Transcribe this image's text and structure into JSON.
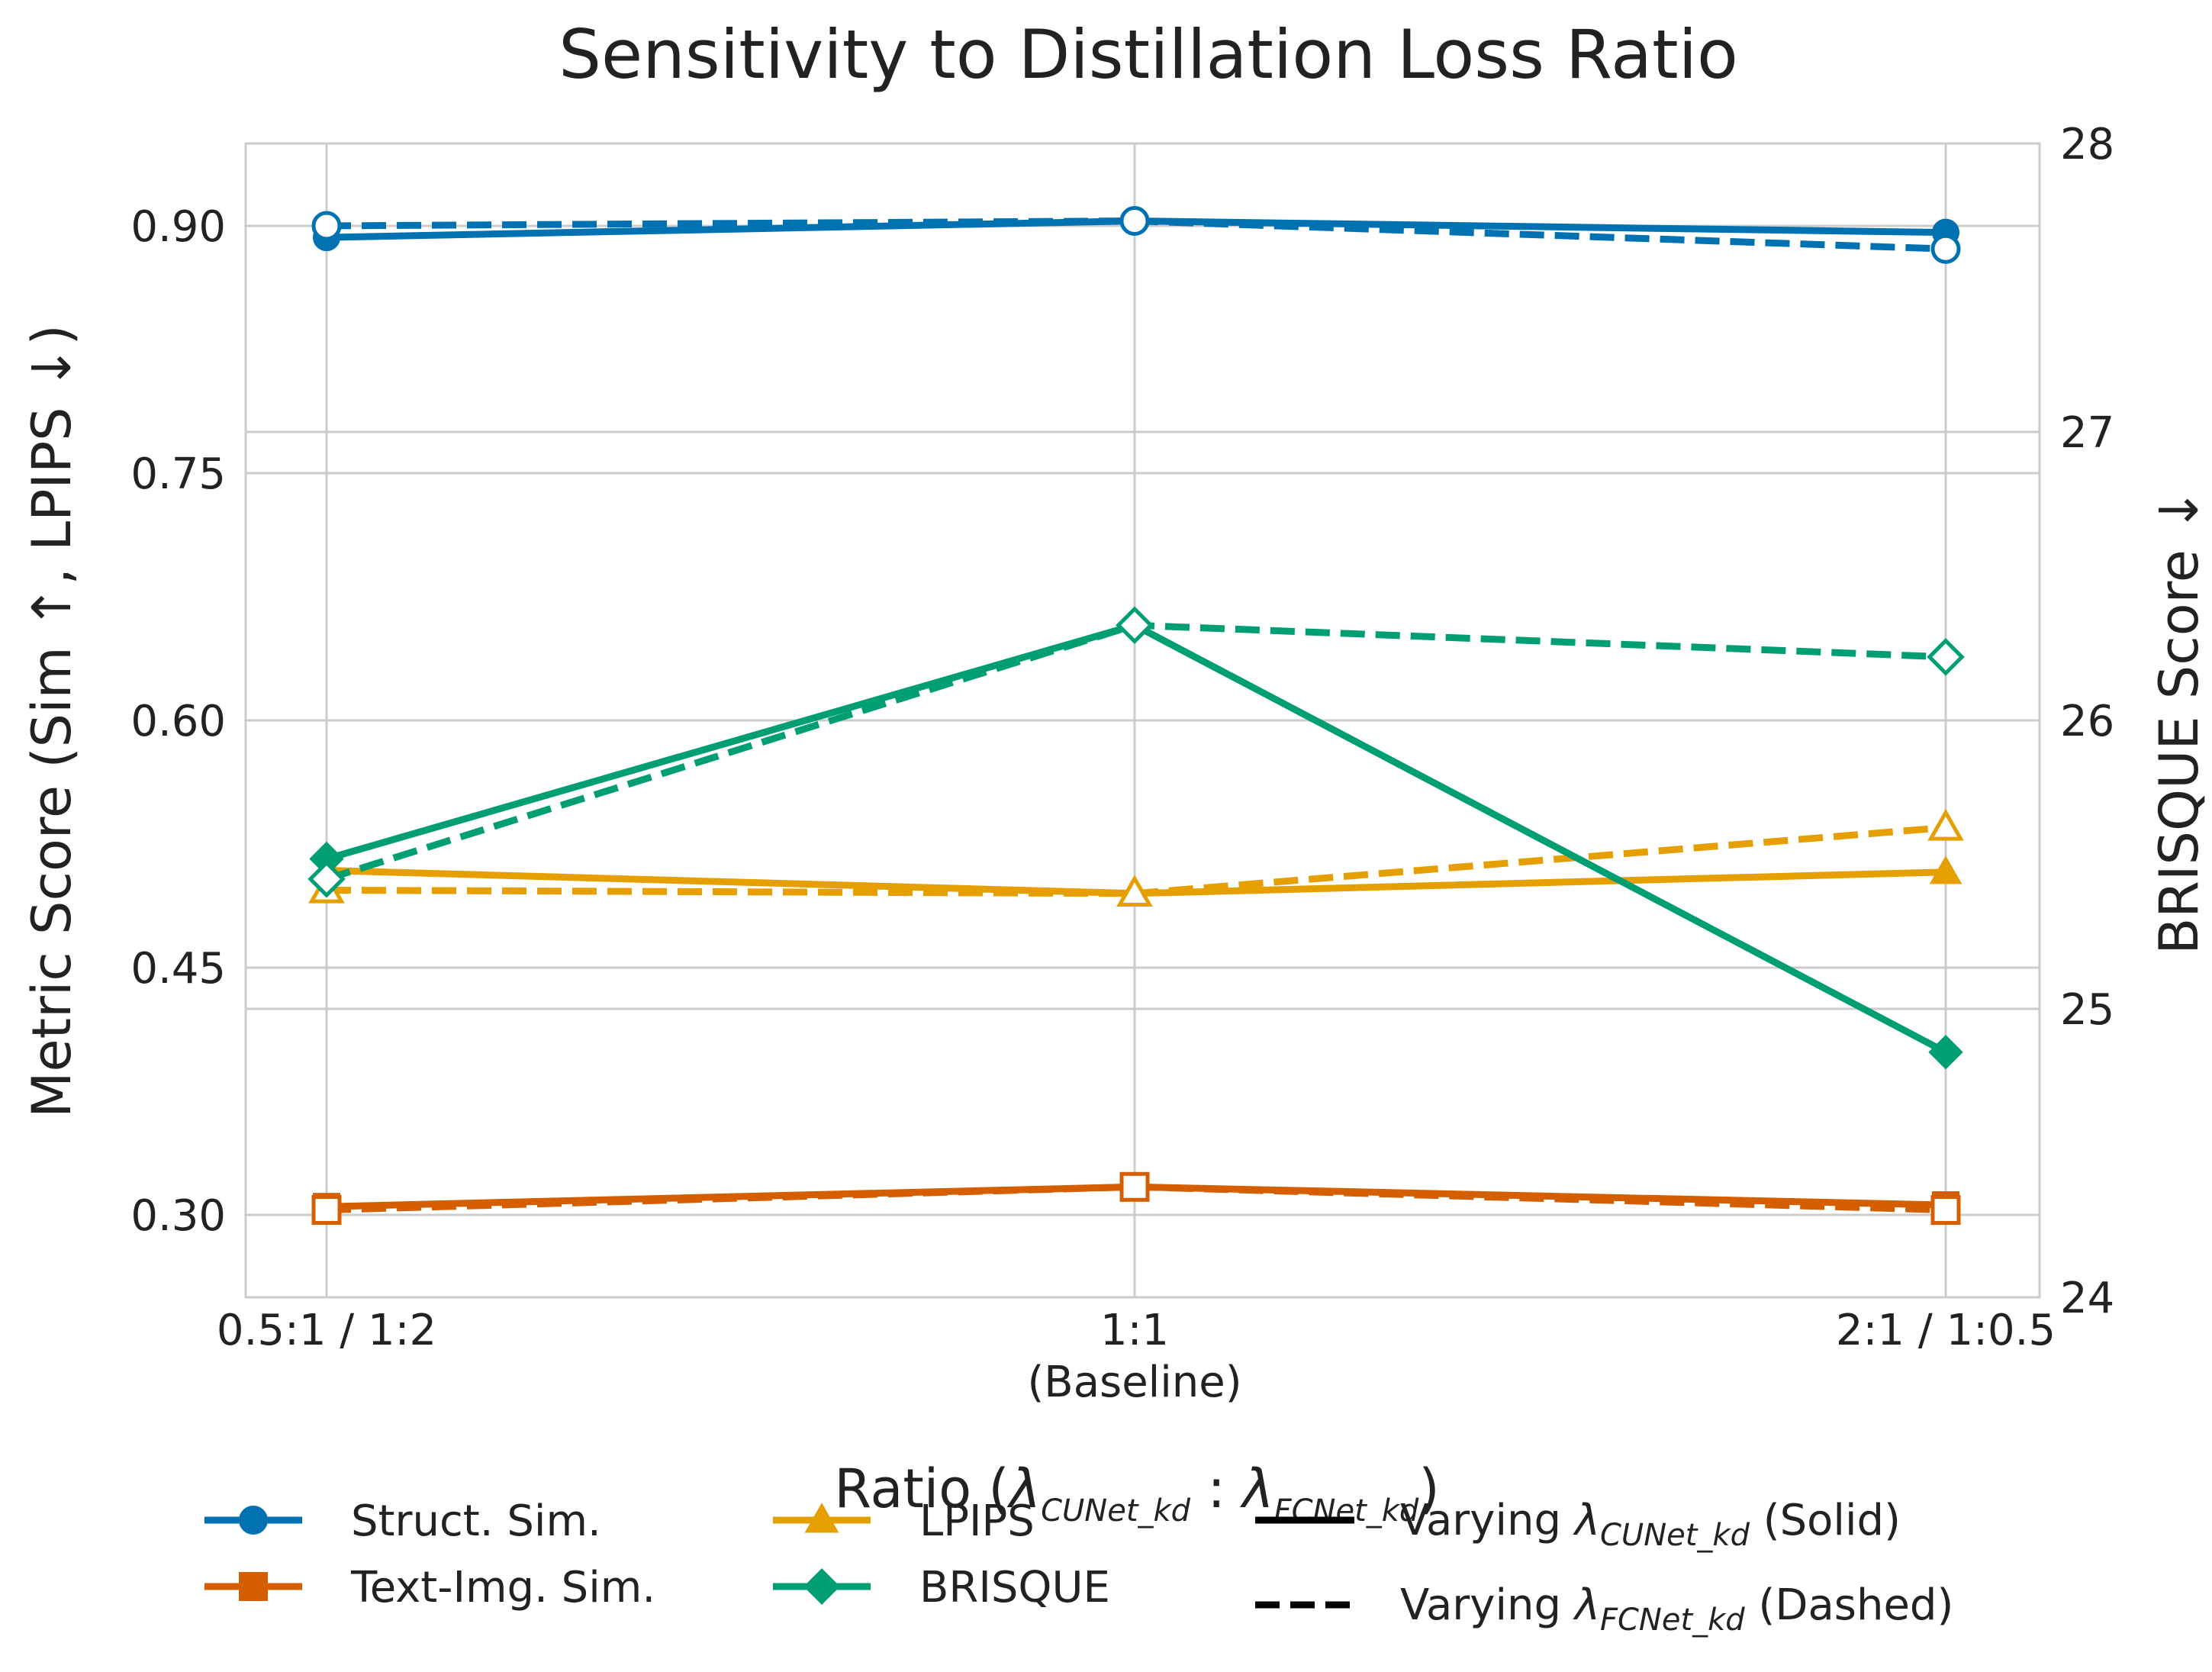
{
  "chart_data": {
    "type": "line",
    "title": "Sensitivity to Distillation Loss Ratio",
    "xlabel": "Ratio (λCUNet_kd : λFCNet_kd)",
    "xlabel_parts": {
      "prefix": "Ratio (",
      "lam1": "λ",
      "sub1": "CUNet_kd",
      "sep": " : ",
      "lam2": "λ",
      "sub2": "FCNet_kd",
      "suffix": ")"
    },
    "ylabel": "Metric Score (Sim ↑, LPIPS ↓)",
    "y2label": "BRISQUE Score ↓",
    "categories": [
      "0.5:1 / 1:2",
      "1:1",
      "2:1 / 1:0.5"
    ],
    "category_sublabels": [
      "",
      "(Baseline)",
      ""
    ],
    "ylim": [
      0.25,
      0.95
    ],
    "yticks": [
      0.3,
      0.45,
      0.6,
      0.75,
      0.9
    ],
    "ytick_labels": [
      "0.30",
      "0.45",
      "0.60",
      "0.75",
      "0.90"
    ],
    "y2lim": [
      24,
      28
    ],
    "y2ticks": [
      24,
      25,
      26,
      27,
      28
    ],
    "y2tick_labels": [
      "24",
      "25",
      "26",
      "27",
      "28"
    ],
    "grid": true,
    "legend_placement": "bottom",
    "series": [
      {
        "name": "Struct. Sim.",
        "axis": "left",
        "marker": "circle",
        "color": "#0072b2",
        "solid": [
          0.893,
          0.903,
          0.896
        ],
        "dashed": [
          0.9,
          0.903,
          0.886
        ]
      },
      {
        "name": "Text-Img. Sim.",
        "axis": "left",
        "marker": "square",
        "color": "#d55e00",
        "solid": [
          0.305,
          0.317,
          0.306
        ],
        "dashed": [
          0.303,
          0.317,
          0.303
        ]
      },
      {
        "name": "LPIPS",
        "axis": "left",
        "marker": "triangle",
        "color": "#e69f00",
        "solid": [
          0.509,
          0.495,
          0.508
        ],
        "dashed": [
          0.497,
          0.495,
          0.535
        ]
      },
      {
        "name": "BRISQUE",
        "axis": "right",
        "marker": "diamond",
        "color": "#009e73",
        "solid": [
          25.52,
          26.33,
          24.85
        ],
        "dashed": [
          25.45,
          26.33,
          26.22
        ]
      }
    ],
    "style_legend": [
      {
        "label_prefix": "Varying ",
        "lam": "λ",
        "sub": "CUNet_kd",
        "label_suffix": " (Solid)",
        "dash": "solid"
      },
      {
        "label_prefix": "Varying ",
        "lam": "λ",
        "sub": "FCNet_kd",
        "label_suffix": " (Dashed)",
        "dash": "dashed"
      }
    ]
  }
}
